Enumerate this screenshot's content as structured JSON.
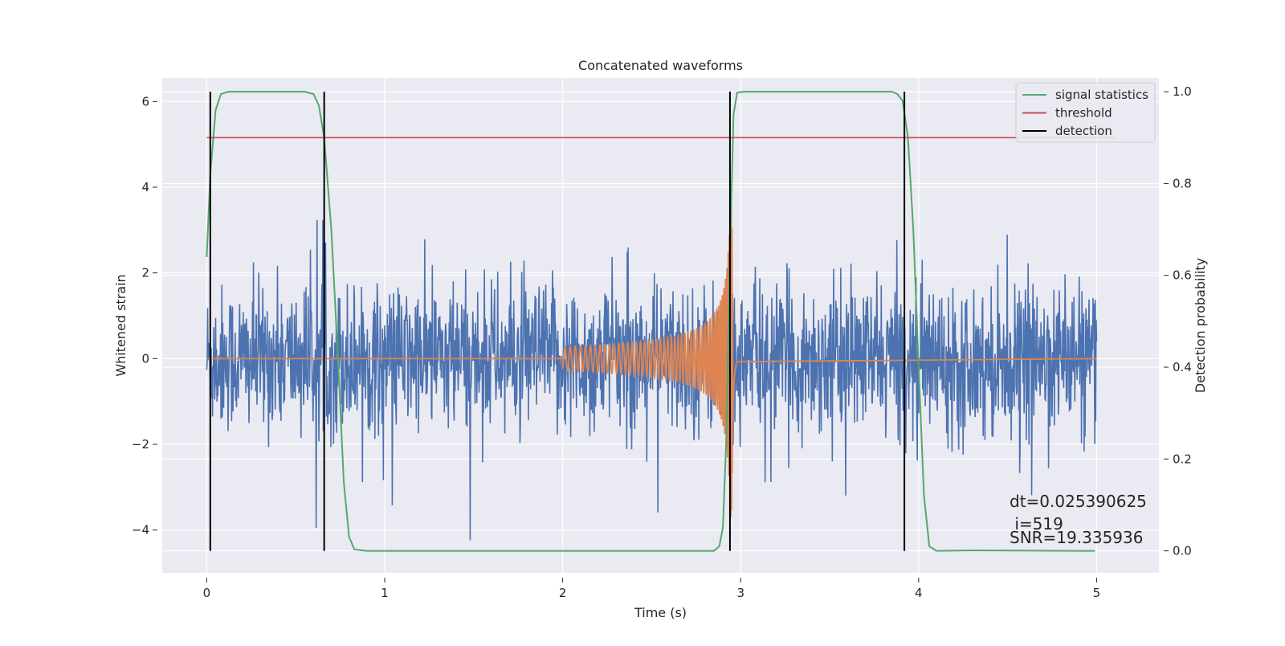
{
  "chart_data": {
    "type": "line",
    "title": "Concatenated waveforms",
    "xlabel": "Time (s)",
    "ylabel": "Whitened strain",
    "y2label": "Detection probability",
    "xlim": [
      -0.25,
      5.35
    ],
    "ylim": [
      -5.0,
      6.55
    ],
    "y2lim": [
      -0.048,
      1.03
    ],
    "xticks": [
      0,
      1,
      2,
      3,
      4,
      5
    ],
    "yticks": [
      -4,
      -2,
      0,
      2,
      4,
      6
    ],
    "y2ticks": [
      0.0,
      0.2,
      0.4,
      0.6,
      0.8,
      1.0
    ],
    "xtick_labels": [
      "0",
      "1",
      "2",
      "3",
      "4",
      "5"
    ],
    "ytick_labels": [
      "−4",
      "−2",
      "0",
      "2",
      "4",
      "6"
    ],
    "y2tick_labels": [
      "0.0",
      "0.2",
      "0.4",
      "0.6",
      "0.8",
      "1.0"
    ],
    "grid": true,
    "legend_position": "top-right",
    "colors": {
      "background": "#eaeaf2",
      "strain": "#4c72b0",
      "waveform": "#dd8452",
      "signal_statistics": "#55a868",
      "threshold": "#c44e52",
      "detection": "#000000"
    },
    "legend": [
      {
        "key": "signal_statistics",
        "label": "signal statistics"
      },
      {
        "key": "threshold",
        "label": "threshold"
      },
      {
        "key": "detection",
        "label": "detection"
      }
    ],
    "strain_noise": {
      "x_range": [
        0.0,
        5.0
      ],
      "sigma": 0.85,
      "peaks_label_free": true
    },
    "waveform_chirp": {
      "x_start": 2.0,
      "merger_x": 2.95,
      "peak_amplitude": 3.7,
      "x_end": 5.0
    },
    "signal_statistics": {
      "axis": "y2",
      "points": [
        [
          0.0,
          0.64
        ],
        [
          0.02,
          0.82
        ],
        [
          0.05,
          0.96
        ],
        [
          0.08,
          0.995
        ],
        [
          0.12,
          1.0
        ],
        [
          0.55,
          1.0
        ],
        [
          0.6,
          0.995
        ],
        [
          0.63,
          0.97
        ],
        [
          0.66,
          0.9
        ],
        [
          0.7,
          0.7
        ],
        [
          0.74,
          0.4
        ],
        [
          0.77,
          0.15
        ],
        [
          0.8,
          0.03
        ],
        [
          0.83,
          0.003
        ],
        [
          0.9,
          0.0
        ],
        [
          2.85,
          0.0
        ],
        [
          2.88,
          0.01
        ],
        [
          2.9,
          0.05
        ],
        [
          2.92,
          0.25
        ],
        [
          2.94,
          0.65
        ],
        [
          2.96,
          0.95
        ],
        [
          2.98,
          0.998
        ],
        [
          3.02,
          1.0
        ],
        [
          3.85,
          1.0
        ],
        [
          3.88,
          0.995
        ],
        [
          3.91,
          0.98
        ],
        [
          3.94,
          0.9
        ],
        [
          3.97,
          0.7
        ],
        [
          4.0,
          0.4
        ],
        [
          4.03,
          0.12
        ],
        [
          4.06,
          0.01
        ],
        [
          4.1,
          0.0
        ],
        [
          4.3,
          0.001
        ],
        [
          4.9,
          0.0
        ],
        [
          4.99,
          0.0
        ]
      ]
    },
    "threshold": {
      "axis": "y2",
      "value": 0.9,
      "x_range": [
        0.0,
        5.1
      ]
    },
    "detections": [
      0.02,
      0.66,
      2.94,
      3.92
    ],
    "annotations": {
      "dt": "dt=0.025390625",
      "i": " i=519",
      "snr": "SNR=19.335936"
    }
  }
}
